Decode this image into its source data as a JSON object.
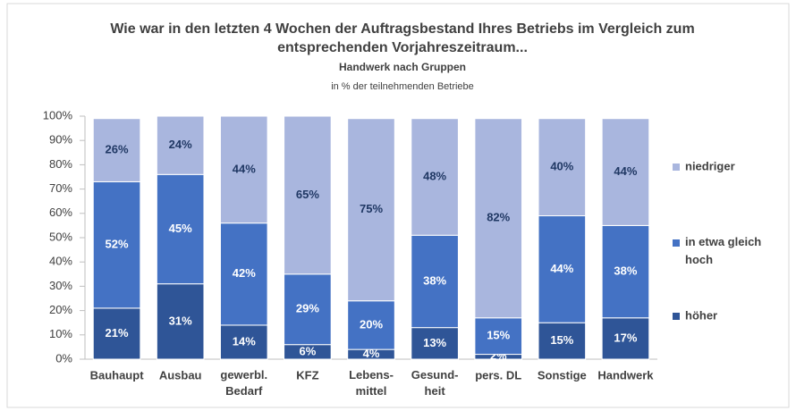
{
  "chart_data": {
    "type": "stacked_bar",
    "title": "Wie war in den letzten 4 Wochen der Auftragsbestand Ihres Betriebs im Vergleich zum\nentsprechenden Vorjahreszeitraum...",
    "subtitle": "Handwerk nach Gruppen",
    "note": "in % der teilnehmenden Betriebe",
    "categories": [
      "Bauhaupt",
      "Ausbau",
      "gewerbl.\nBedarf",
      "KFZ",
      "Lebens-\nmittel",
      "Gesund-\nheit",
      "pers. DL",
      "Sonstige",
      "Handwerk"
    ],
    "series": [
      {
        "name": "höher",
        "color": "#2f5597",
        "label_color": "#ffffff",
        "values": [
          21,
          31,
          14,
          6,
          4,
          13,
          2,
          15,
          17
        ],
        "value_labels": [
          "21%",
          "31%",
          "14%",
          "6%",
          "4%",
          "13%",
          "2%",
          "15%",
          "17%"
        ]
      },
      {
        "name": "in etwa gleich\nhoch",
        "color": "#4472c4",
        "label_color": "#ffffff",
        "values": [
          52,
          45,
          42,
          29,
          20,
          38,
          15,
          44,
          38
        ],
        "value_labels": [
          "52%",
          "45%",
          "42%",
          "29%",
          "20%",
          "38%",
          "15%",
          "44%",
          "38%"
        ]
      },
      {
        "name": "niedriger",
        "color": "#a9b6de",
        "label_color": "#203864",
        "values": [
          26,
          24,
          44,
          65,
          75,
          48,
          82,
          40,
          44
        ],
        "value_labels": [
          "26%",
          "24%",
          "44%",
          "65%",
          "75%",
          "48%",
          "82%",
          "40%",
          "44%"
        ]
      }
    ],
    "ylim": [
      0,
      100
    ],
    "yticks": [
      {
        "value": 0,
        "label": "0%"
      },
      {
        "value": 10,
        "label": "10%"
      },
      {
        "value": 20,
        "label": "20%"
      },
      {
        "value": 30,
        "label": "30%"
      },
      {
        "value": 40,
        "label": "40%"
      },
      {
        "value": 50,
        "label": "50%"
      },
      {
        "value": 60,
        "label": "60%"
      },
      {
        "value": 70,
        "label": "70%"
      },
      {
        "value": 80,
        "label": "80%"
      },
      {
        "value": 90,
        "label": "90%"
      },
      {
        "value": 100,
        "label": "100%"
      }
    ],
    "legend": "right"
  }
}
